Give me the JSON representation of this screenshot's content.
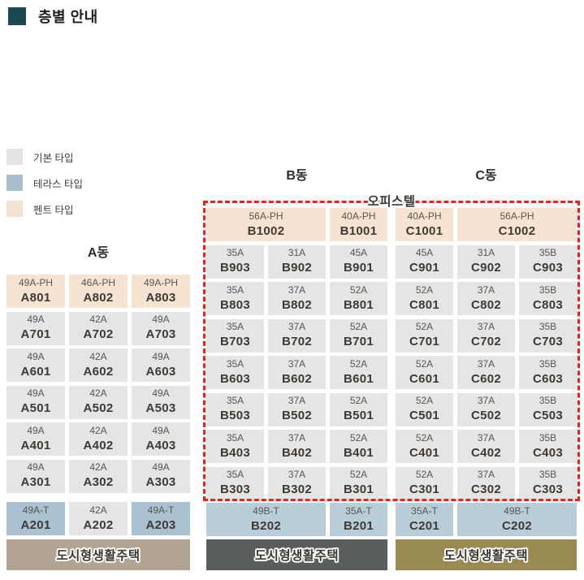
{
  "title": {
    "text": "층별 안내"
  },
  "legend": [
    {
      "name": "basic",
      "label": "기본 타입",
      "color": "#e3e4e3"
    },
    {
      "name": "terrace",
      "label": "테라스 타입",
      "color": "#a8bfcd"
    },
    {
      "name": "pent",
      "label": "펜트 타입",
      "color": "#f3e2d2"
    }
  ],
  "headers": {
    "a": "A동",
    "b": "B동",
    "c": "C동",
    "officetel": "오피스텔"
  },
  "colors": {
    "title_square": "#1d4852",
    "title_square_shadow": "#d7d9d9",
    "cell_basic": "#e4e5e4",
    "cell_pent": "#f6e3d2",
    "cell_terrace_a": "#a9c1d0",
    "cell_terrace_bc": "#b9cdd9",
    "bar_a_bg": "#b2a492",
    "bar_b_bg": "#595d5c",
    "bar_c_bg": "#998a52",
    "officetel_border_red": "#e8231e",
    "cell_type_text": "#5a554f",
    "cell_unit_text": "#3f3a35"
  },
  "buildings": {
    "a": {
      "rows": [
        [
          {
            "type": "49A-PH",
            "unit": "A801",
            "variant": "pent"
          },
          {
            "type": "46A-PH",
            "unit": "A802",
            "variant": "pent"
          },
          {
            "type": "49A-PH",
            "unit": "A803",
            "variant": "pent"
          }
        ],
        [
          {
            "type": "49A",
            "unit": "A701",
            "variant": "basic"
          },
          {
            "type": "42A",
            "unit": "A702",
            "variant": "basic"
          },
          {
            "type": "49A",
            "unit": "A703",
            "variant": "basic"
          }
        ],
        [
          {
            "type": "49A",
            "unit": "A601",
            "variant": "basic"
          },
          {
            "type": "42A",
            "unit": "A602",
            "variant": "basic"
          },
          {
            "type": "49A",
            "unit": "A603",
            "variant": "basic"
          }
        ],
        [
          {
            "type": "49A",
            "unit": "A501",
            "variant": "basic"
          },
          {
            "type": "42A",
            "unit": "A502",
            "variant": "basic"
          },
          {
            "type": "49A",
            "unit": "A503",
            "variant": "basic"
          }
        ],
        [
          {
            "type": "49A",
            "unit": "A401",
            "variant": "basic"
          },
          {
            "type": "42A",
            "unit": "A402",
            "variant": "basic"
          },
          {
            "type": "49A",
            "unit": "A403",
            "variant": "basic"
          }
        ],
        [
          {
            "type": "49A",
            "unit": "A301",
            "variant": "basic"
          },
          {
            "type": "42A",
            "unit": "A302",
            "variant": "basic"
          },
          {
            "type": "49A",
            "unit": "A303",
            "variant": "basic"
          }
        ]
      ],
      "bottom": [
        {
          "type": "49A-T",
          "unit": "A201",
          "variant": "terrace"
        },
        {
          "type": "42A",
          "unit": "A202",
          "variant": "basic"
        },
        {
          "type": "49A-T",
          "unit": "A203",
          "variant": "terrace"
        }
      ],
      "bar": "도시형생활주택"
    },
    "b": {
      "rows": [
        [
          {
            "type": "56A-PH",
            "unit": "B1002",
            "variant": "pent",
            "span": 2
          },
          {
            "type": "40A-PH",
            "unit": "B1001",
            "variant": "pent"
          }
        ],
        [
          {
            "type": "35A",
            "unit": "B903",
            "variant": "basic"
          },
          {
            "type": "31A",
            "unit": "B902",
            "variant": "basic"
          },
          {
            "type": "45A",
            "unit": "B901",
            "variant": "basic"
          }
        ],
        [
          {
            "type": "35A",
            "unit": "B803",
            "variant": "basic"
          },
          {
            "type": "37A",
            "unit": "B802",
            "variant": "basic"
          },
          {
            "type": "52A",
            "unit": "B801",
            "variant": "basic"
          }
        ],
        [
          {
            "type": "35A",
            "unit": "B703",
            "variant": "basic"
          },
          {
            "type": "37A",
            "unit": "B702",
            "variant": "basic"
          },
          {
            "type": "52A",
            "unit": "B701",
            "variant": "basic"
          }
        ],
        [
          {
            "type": "35A",
            "unit": "B603",
            "variant": "basic"
          },
          {
            "type": "37A",
            "unit": "B602",
            "variant": "basic"
          },
          {
            "type": "52A",
            "unit": "B601",
            "variant": "basic"
          }
        ],
        [
          {
            "type": "35A",
            "unit": "B503",
            "variant": "basic"
          },
          {
            "type": "37A",
            "unit": "B502",
            "variant": "basic"
          },
          {
            "type": "52A",
            "unit": "B501",
            "variant": "basic"
          }
        ],
        [
          {
            "type": "35A",
            "unit": "B403",
            "variant": "basic"
          },
          {
            "type": "37A",
            "unit": "B402",
            "variant": "basic"
          },
          {
            "type": "52A",
            "unit": "B401",
            "variant": "basic"
          }
        ],
        [
          {
            "type": "35A",
            "unit": "B303",
            "variant": "basic"
          },
          {
            "type": "37A",
            "unit": "B302",
            "variant": "basic"
          },
          {
            "type": "52A",
            "unit": "B301",
            "variant": "basic"
          }
        ]
      ],
      "bottom": [
        {
          "type": "49B-T",
          "unit": "B202",
          "variant": "terrace2",
          "span": 2
        },
        {
          "type": "35A-T",
          "unit": "B201",
          "variant": "terrace2"
        }
      ],
      "bar": "도시형생활주택"
    },
    "c": {
      "rows": [
        [
          {
            "type": "40A-PH",
            "unit": "C1001",
            "variant": "pent"
          },
          {
            "type": "56A-PH",
            "unit": "C1002",
            "variant": "pent",
            "span": 2
          }
        ],
        [
          {
            "type": "45A",
            "unit": "C901",
            "variant": "basic"
          },
          {
            "type": "31A",
            "unit": "C902",
            "variant": "basic"
          },
          {
            "type": "35B",
            "unit": "C903",
            "variant": "basic"
          }
        ],
        [
          {
            "type": "52A",
            "unit": "C801",
            "variant": "basic"
          },
          {
            "type": "37A",
            "unit": "C802",
            "variant": "basic"
          },
          {
            "type": "35B",
            "unit": "C803",
            "variant": "basic"
          }
        ],
        [
          {
            "type": "52A",
            "unit": "C701",
            "variant": "basic"
          },
          {
            "type": "37A",
            "unit": "C702",
            "variant": "basic"
          },
          {
            "type": "35B",
            "unit": "C703",
            "variant": "basic"
          }
        ],
        [
          {
            "type": "52A",
            "unit": "C601",
            "variant": "basic"
          },
          {
            "type": "37A",
            "unit": "C602",
            "variant": "basic"
          },
          {
            "type": "35B",
            "unit": "C603",
            "variant": "basic"
          }
        ],
        [
          {
            "type": "52A",
            "unit": "C501",
            "variant": "basic"
          },
          {
            "type": "37A",
            "unit": "C502",
            "variant": "basic"
          },
          {
            "type": "35B",
            "unit": "C503",
            "variant": "basic"
          }
        ],
        [
          {
            "type": "52A",
            "unit": "C401",
            "variant": "basic"
          },
          {
            "type": "37A",
            "unit": "C402",
            "variant": "basic"
          },
          {
            "type": "35B",
            "unit": "C403",
            "variant": "basic"
          }
        ],
        [
          {
            "type": "52A",
            "unit": "C301",
            "variant": "basic"
          },
          {
            "type": "37A",
            "unit": "C302",
            "variant": "basic"
          },
          {
            "type": "35B",
            "unit": "C303",
            "variant": "basic"
          }
        ]
      ],
      "bottom": [
        {
          "type": "35A-T",
          "unit": "C201",
          "variant": "terrace2"
        },
        {
          "type": "49B-T",
          "unit": "C202",
          "variant": "terrace2",
          "span": 2
        }
      ],
      "bar": "도시형생활주택"
    }
  }
}
